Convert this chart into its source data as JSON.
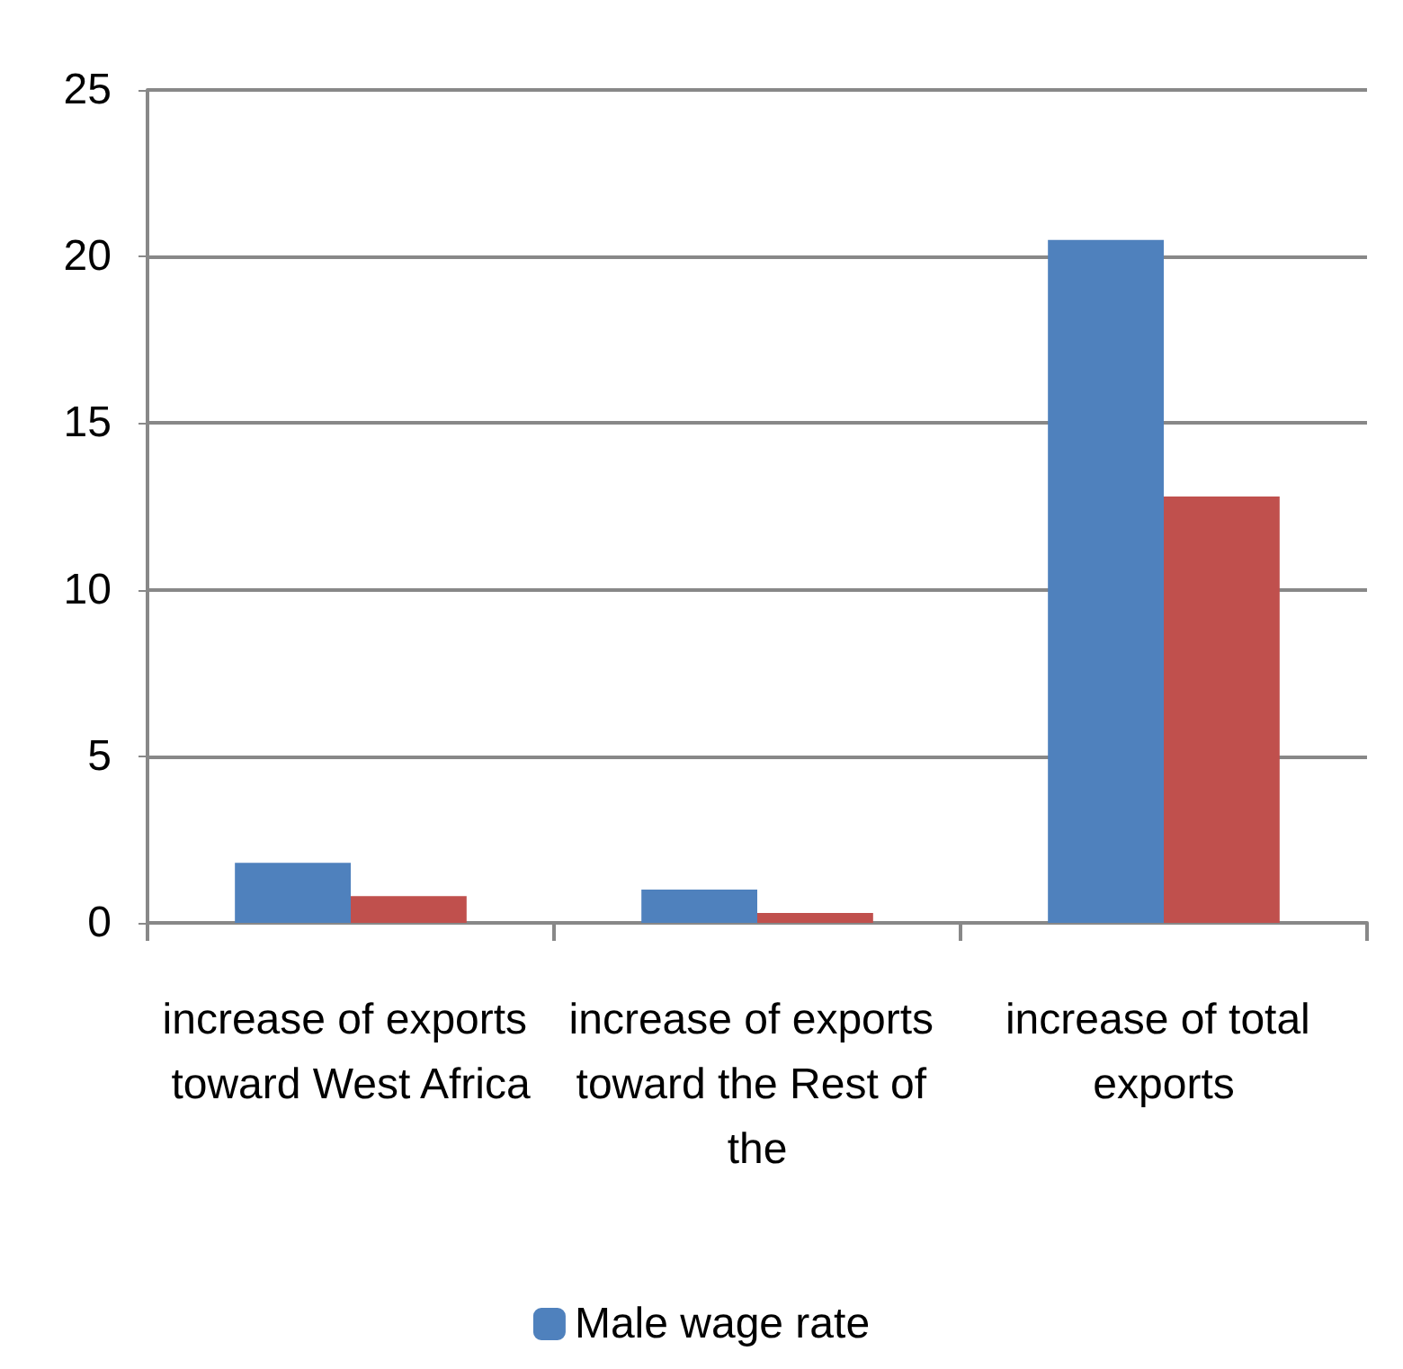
{
  "chart_data": {
    "type": "bar",
    "categories": [
      "increase of exports toward West Africa",
      "increase of exports toward the Rest of the",
      "increase of total exports"
    ],
    "series": [
      {
        "name": "Male wage rate",
        "color": "#4f81bd",
        "values": [
          1.8,
          1.0,
          20.5
        ]
      },
      {
        "color": "#c0504d",
        "values": [
          0.8,
          0.3,
          12.8
        ]
      }
    ],
    "ylim": [
      0,
      25
    ],
    "yticks": [
      0,
      5,
      10,
      15,
      20,
      25
    ],
    "grid": "y",
    "legend": "bottom"
  }
}
